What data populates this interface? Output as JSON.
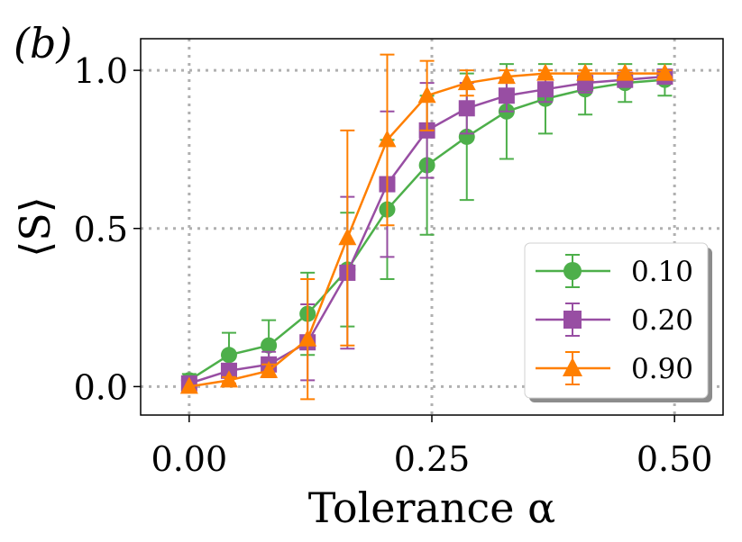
{
  "panel_label": "(b)",
  "chart_data": {
    "type": "line",
    "title": "",
    "xlabel": "Tolerance α",
    "ylabel": "⟨S⟩",
    "xlim": [
      -0.05,
      0.55
    ],
    "ylim": [
      -0.09,
      1.1
    ],
    "xticks": [
      0.0,
      0.25,
      0.5
    ],
    "xtick_labels": [
      "0.00",
      "0.25",
      "0.50"
    ],
    "yticks": [
      0.0,
      0.5,
      1.0
    ],
    "ytick_labels": [
      "0.0",
      "0.5",
      "1.0"
    ],
    "grid": true,
    "legend_position": "lower-right",
    "series": [
      {
        "name": "0.10",
        "color": "#4daf4a",
        "marker": "circle",
        "x": [
          0.0,
          0.041,
          0.082,
          0.122,
          0.163,
          0.204,
          0.245,
          0.286,
          0.327,
          0.367,
          0.408,
          0.449,
          0.49
        ],
        "y": [
          0.02,
          0.1,
          0.13,
          0.23,
          0.37,
          0.56,
          0.7,
          0.79,
          0.87,
          0.91,
          0.94,
          0.96,
          0.97
        ],
        "err": [
          0.02,
          0.07,
          0.08,
          0.13,
          0.18,
          0.22,
          0.22,
          0.2,
          0.15,
          0.11,
          0.08,
          0.06,
          0.05
        ]
      },
      {
        "name": "0.20",
        "color": "#984ea3",
        "marker": "square",
        "x": [
          0.0,
          0.041,
          0.082,
          0.122,
          0.163,
          0.204,
          0.245,
          0.286,
          0.327,
          0.367,
          0.408,
          0.449,
          0.49
        ],
        "y": [
          0.01,
          0.05,
          0.07,
          0.14,
          0.36,
          0.64,
          0.81,
          0.88,
          0.92,
          0.94,
          0.96,
          0.97,
          0.98
        ],
        "err": [
          0.01,
          0.02,
          0.04,
          0.12,
          0.24,
          0.23,
          0.15,
          0.08,
          0.05,
          0.04,
          0.03,
          0.02,
          0.02
        ]
      },
      {
        "name": "0.90",
        "color": "#ff7f00",
        "marker": "triangle",
        "x": [
          0.0,
          0.041,
          0.082,
          0.122,
          0.163,
          0.204,
          0.245,
          0.286,
          0.327,
          0.367,
          0.408,
          0.449,
          0.49
        ],
        "y": [
          0.0,
          0.02,
          0.05,
          0.15,
          0.47,
          0.78,
          0.92,
          0.96,
          0.98,
          0.99,
          0.99,
          0.99,
          0.99
        ],
        "err": [
          0.0,
          0.01,
          0.02,
          0.19,
          0.34,
          0.27,
          0.11,
          0.04,
          0.02,
          0.01,
          0.01,
          0.01,
          0.01
        ]
      }
    ]
  }
}
